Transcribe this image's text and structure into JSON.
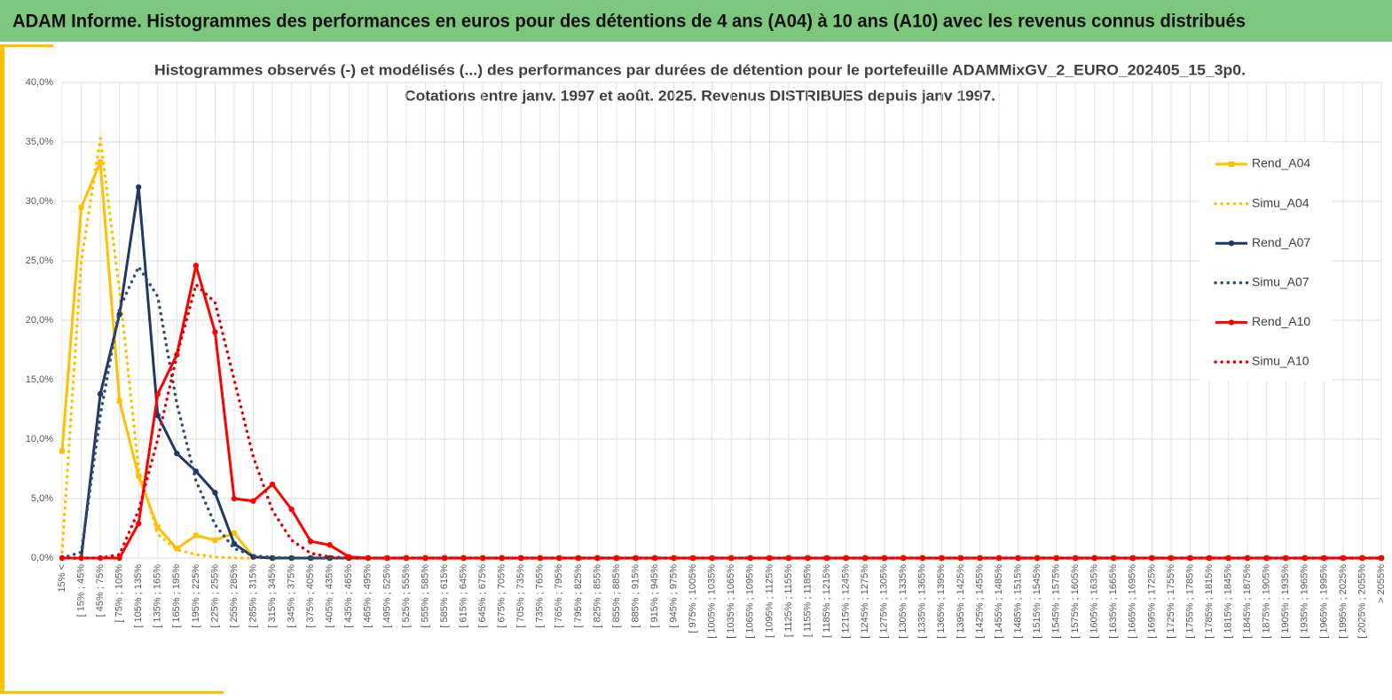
{
  "header": {
    "title": "ADAM Informe. Histogrammes des performances en euros pour des détentions de 4 ans (A04) à 10 ans (A10) avec les revenus connus distribués"
  },
  "chart_data": {
    "type": "line",
    "title": "Histogrammes observés (-) et modélisés (...) des performances par durées de détention pour le portefeuille ADAMMixGV_2_EURO_202405_15_3p0.",
    "subtitle": "Cotations entre janv. 1997 et août. 2025. Revenus DISTRIBUES depuis janv 1997.",
    "categories": [
      "15% <",
      "[ 15% ; 45%",
      "[ 45% ; 75%",
      "[ 75% ; 105%",
      "[ 105% ; 135%",
      "[ 135% ; 165%",
      "[ 165% ; 195%",
      "[ 195% ; 225%",
      "[ 225% ; 255%",
      "[ 255% ; 285%",
      "[ 285% ; 315%",
      "[ 315% ; 345%",
      "[ 345% ; 375%",
      "[ 375% ; 405%",
      "[ 405% ; 435%",
      "[ 435% ; 465%",
      "[ 465% ; 495%",
      "[ 495% ; 525%",
      "[ 525% ; 555%",
      "[ 555% ; 585%",
      "[ 585% ; 615%",
      "[ 615% ; 645%",
      "[ 645% ; 675%",
      "[ 675% ; 705%",
      "[ 705% ; 735%",
      "[ 735% ; 765%",
      "[ 765% ; 795%",
      "[ 795% ; 825%",
      "[ 825% ; 855%",
      "[ 855% ; 885%",
      "[ 885% ; 915%",
      "[ 915% ; 945%",
      "[ 945% ; 975%",
      "[ 975% ; 1005%",
      "[ 1005% ; 1035%",
      "[ 1035% ; 1065%",
      "[ 1065% ; 1095%",
      "[ 1095% ; 1125%",
      "[ 1125% ; 1155%",
      "[ 1155% ; 1185%",
      "[ 1185% ; 1215%",
      "[ 1215% ; 1245%",
      "[ 1245% ; 1275%",
      "[ 1275% ; 1305%",
      "[ 1305% ; 1335%",
      "[ 1335% ; 1365%",
      "[ 1365% ; 1395%",
      "[ 1395% ; 1425%",
      "[ 1425% ; 1455%",
      "[ 1455% ; 1485%",
      "[ 1485% ; 1515%",
      "[ 1515% ; 1545%",
      "[ 1545% ; 1575%",
      "[ 1575% ; 1605%",
      "[ 1605% ; 1635%",
      "[ 1635% ; 1665%",
      "[ 1665% ; 1695%",
      "[ 1695% ; 1725%",
      "[ 1725% ; 1755%",
      "[ 1755% ; 1785%",
      "[ 1785% ; 1815%",
      "[ 1815% ; 1845%",
      "[ 1845% ; 1875%",
      "[ 1875% ; 1905%",
      "[ 1905% ; 1935%",
      "[ 1935% ; 1965%",
      "[ 1965% ; 1995%",
      "[ 1995% ; 2025%",
      "[ 2025% ; 2055%",
      "> 2055%"
    ],
    "series": [
      {
        "name": "Rend_A04",
        "color": "#ffc000",
        "style": "solid",
        "marker": "square",
        "values": [
          9.0,
          29.5,
          33.3,
          13.2,
          6.9,
          2.6,
          0.8,
          1.9,
          1.5,
          2.1,
          0.1,
          0,
          0,
          0,
          0,
          0,
          0,
          0,
          0,
          0,
          0,
          0,
          0,
          0,
          0,
          0,
          0,
          0,
          0,
          0,
          0,
          0,
          0,
          0,
          0,
          0,
          0,
          0,
          0,
          0,
          0,
          0,
          0,
          0,
          0,
          0,
          0,
          0,
          0,
          0,
          0,
          0,
          0,
          0,
          0,
          0,
          0,
          0,
          0,
          0,
          0,
          0,
          0,
          0,
          0,
          0,
          0,
          0,
          0,
          0
        ]
      },
      {
        "name": "Simu_A04",
        "color": "#ffc000",
        "style": "dotted",
        "marker": "none",
        "values": [
          0.5,
          25.0,
          35.3,
          22.5,
          7.5,
          2.0,
          0.7,
          0.3,
          0.1,
          0,
          0,
          0,
          0,
          0,
          0,
          0,
          0,
          0,
          0,
          0,
          0,
          0,
          0,
          0,
          0,
          0,
          0,
          0,
          0,
          0,
          0,
          0,
          0,
          0,
          0,
          0,
          0,
          0,
          0,
          0,
          0,
          0,
          0,
          0,
          0,
          0,
          0,
          0,
          0,
          0,
          0,
          0,
          0,
          0,
          0,
          0,
          0,
          0,
          0,
          0,
          0,
          0,
          0,
          0,
          0,
          0,
          0,
          0,
          0,
          0
        ]
      },
      {
        "name": "Rend_A07",
        "color": "#1f3864",
        "style": "solid",
        "marker": "circle",
        "values": [
          0,
          0,
          13.8,
          20.5,
          31.2,
          12.0,
          8.8,
          7.3,
          5.5,
          1.2,
          0.1,
          0,
          0,
          0,
          0,
          0,
          0,
          0,
          0,
          0,
          0,
          0,
          0,
          0,
          0,
          0,
          0,
          0,
          0,
          0,
          0,
          0,
          0,
          0,
          0,
          0,
          0,
          0,
          0,
          0,
          0,
          0,
          0,
          0,
          0,
          0,
          0,
          0,
          0,
          0,
          0,
          0,
          0,
          0,
          0,
          0,
          0,
          0,
          0,
          0,
          0,
          0,
          0,
          0,
          0,
          0,
          0,
          0,
          0,
          0
        ]
      },
      {
        "name": "Simu_A07",
        "color": "#2f4f75",
        "style": "dotted",
        "marker": "none",
        "values": [
          0,
          0.5,
          12.0,
          21.0,
          24.5,
          22.0,
          13.0,
          6.5,
          2.8,
          0.8,
          0.2,
          0.05,
          0,
          0,
          0,
          0,
          0,
          0,
          0,
          0,
          0,
          0,
          0,
          0,
          0,
          0,
          0,
          0,
          0,
          0,
          0,
          0,
          0,
          0,
          0,
          0,
          0,
          0,
          0,
          0,
          0,
          0,
          0,
          0,
          0,
          0,
          0,
          0,
          0,
          0,
          0,
          0,
          0,
          0,
          0,
          0,
          0,
          0,
          0,
          0,
          0,
          0,
          0,
          0,
          0,
          0,
          0,
          0,
          0,
          0
        ]
      },
      {
        "name": "Rend_A10",
        "color": "#ff0000",
        "style": "solid",
        "marker": "circle",
        "values": [
          0,
          0,
          0,
          0,
          2.9,
          13.8,
          17.1,
          24.6,
          19.0,
          5.0,
          4.8,
          6.2,
          4.1,
          1.4,
          1.1,
          0.1,
          0,
          0,
          0,
          0,
          0,
          0,
          0,
          0,
          0,
          0,
          0,
          0,
          0,
          0,
          0,
          0,
          0,
          0,
          0,
          0,
          0,
          0,
          0,
          0,
          0,
          0,
          0,
          0,
          0,
          0,
          0,
          0,
          0,
          0,
          0,
          0,
          0,
          0,
          0,
          0,
          0,
          0,
          0,
          0,
          0,
          0,
          0,
          0,
          0,
          0,
          0,
          0,
          0,
          0
        ]
      },
      {
        "name": "Simu_A10",
        "color": "#e00000",
        "style": "dotted",
        "marker": "none",
        "values": [
          0,
          0,
          0,
          0.3,
          4.0,
          10.0,
          17.0,
          23.0,
          21.5,
          15.0,
          8.5,
          4.0,
          1.5,
          0.4,
          0.1,
          0,
          0,
          0,
          0,
          0,
          0,
          0,
          0,
          0,
          0,
          0,
          0,
          0,
          0,
          0,
          0,
          0,
          0,
          0,
          0,
          0,
          0,
          0,
          0,
          0,
          0,
          0,
          0,
          0,
          0,
          0,
          0,
          0,
          0,
          0,
          0,
          0,
          0,
          0,
          0,
          0,
          0,
          0,
          0,
          0,
          0,
          0,
          0,
          0,
          0,
          0,
          0,
          0,
          0,
          0
        ]
      }
    ],
    "ylim": [
      0,
      40
    ],
    "yticks": [
      {
        "value": 0,
        "label": "0,0%"
      },
      {
        "value": 5,
        "label": "5,0%"
      },
      {
        "value": 10,
        "label": "10,0%"
      },
      {
        "value": 15,
        "label": "15,0%"
      },
      {
        "value": 20,
        "label": "20,0%"
      },
      {
        "value": 25,
        "label": "25,0%"
      },
      {
        "value": 30,
        "label": "30,0%"
      },
      {
        "value": 35,
        "label": "35,0%"
      },
      {
        "value": 40,
        "label": "40,0%"
      }
    ],
    "grid": true,
    "legend": "right"
  }
}
